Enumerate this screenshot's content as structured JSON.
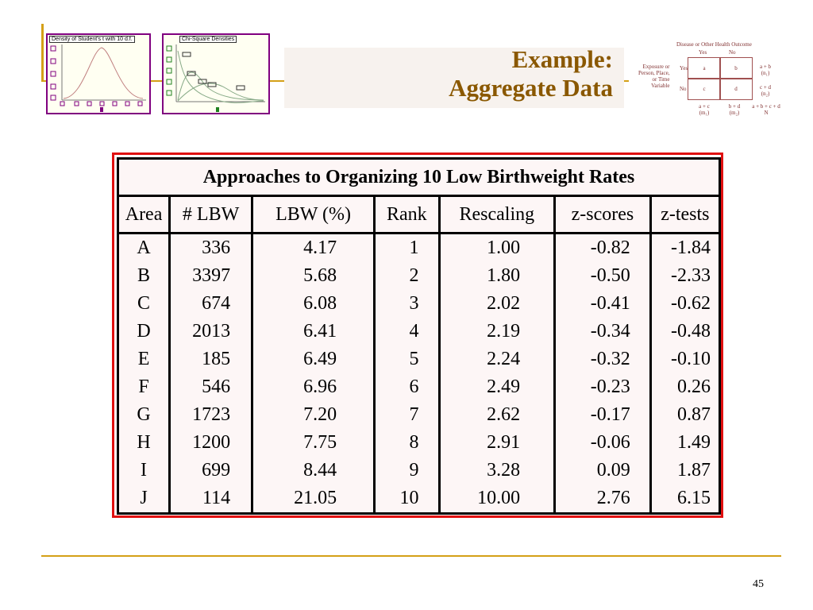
{
  "slide": {
    "title": "Example:\nAggregate Data",
    "page_number": "45"
  },
  "thumbnails": {
    "student_t_title": "Density of Student's t with 10 d.f.",
    "chi_square_title": "Chi-Square Densities"
  },
  "two_by_two": {
    "header": "Disease or Other Health Outcome",
    "yes": "Yes",
    "no": "No",
    "row_label": "Exposure or\nPerson, Place,\nor Time\nVariable",
    "row_yes": "Yes",
    "row_no": "No",
    "a": "a",
    "b": "b",
    "c": "c",
    "d": "d",
    "n1": "a + b\n(n₁)",
    "n2": "c + d\n(n₂)",
    "m1": "a + c\n(m₁)",
    "m2": "b + d\n(m₂)",
    "N": "a + b + c + d\nN"
  },
  "table": {
    "caption": "Approaches to Organizing 10 Low Birthweight Rates",
    "columns": [
      "Area",
      "# LBW",
      "LBW (%)",
      "Rank",
      "Rescaling",
      "z-scores",
      "z-tests"
    ],
    "rows": [
      [
        "A",
        "336",
        "4.17",
        "1",
        "1.00",
        "-0.82",
        "-1.84"
      ],
      [
        "B",
        "3397",
        "5.68",
        "2",
        "1.80",
        "-0.50",
        "-2.33"
      ],
      [
        "C",
        "674",
        "6.08",
        "3",
        "2.02",
        "-0.41",
        "-0.62"
      ],
      [
        "D",
        "2013",
        "6.41",
        "4",
        "2.19",
        "-0.34",
        "-0.48"
      ],
      [
        "E",
        "185",
        "6.49",
        "5",
        "2.24",
        "-0.32",
        "-0.10"
      ],
      [
        "F",
        "546",
        "6.96",
        "6",
        "2.49",
        "-0.23",
        "0.26"
      ],
      [
        "G",
        "1723",
        "7.20",
        "7",
        "2.62",
        "-0.17",
        "0.87"
      ],
      [
        "H",
        "1200",
        "7.75",
        "8",
        "2.91",
        "-0.06",
        "1.49"
      ],
      [
        "I",
        "699",
        "8.44",
        "9",
        "3.28",
        "0.09",
        "1.87"
      ],
      [
        "J",
        "114",
        "21.05",
        "10",
        "10.00",
        "2.76",
        "6.15"
      ]
    ]
  },
  "colors": {
    "accent_rule": "#d4a017",
    "title": "#8a5800",
    "table_frame": "#e01010",
    "thumbnail_border": "#800080"
  }
}
